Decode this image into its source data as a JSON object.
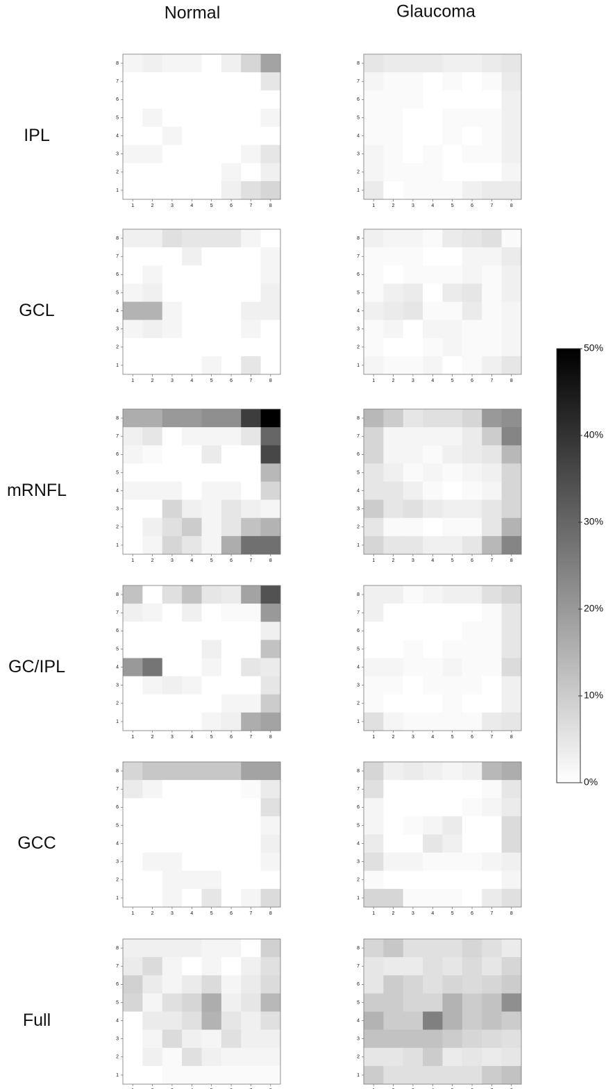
{
  "chart_data": {
    "type": "heatmap",
    "columns": [
      "Normal",
      "Glaucoma"
    ],
    "rows": [
      "IPL",
      "GCL",
      "mRNFL",
      "GC/IPL",
      "GCC",
      "Full"
    ],
    "x": [
      1,
      2,
      3,
      4,
      5,
      6,
      7,
      8
    ],
    "y": [
      8,
      7,
      6,
      5,
      4,
      3,
      2,
      1
    ],
    "colors": [
      "#ffffff",
      "#000000"
    ],
    "zlim": [
      0,
      50
    ],
    "zticks": [
      {
        "value": 0,
        "label": "0%"
      },
      {
        "value": 10,
        "label": "10%"
      },
      {
        "value": 20,
        "label": "20%"
      },
      {
        "value": 30,
        "label": "30%"
      },
      {
        "value": 40,
        "label": "40%"
      },
      {
        "value": 50,
        "label": "50%"
      }
    ],
    "panels": [
      [
        [
          [
            2,
            3,
            2,
            2,
            0,
            3,
            8,
            18
          ],
          [
            0,
            0,
            0,
            0,
            0,
            0,
            0,
            5
          ],
          [
            0,
            0,
            0,
            0,
            0,
            0,
            0,
            0
          ],
          [
            0,
            2,
            0,
            0,
            0,
            0,
            0,
            2
          ],
          [
            0,
            0,
            2,
            0,
            0,
            0,
            0,
            0
          ],
          [
            2,
            2,
            0,
            0,
            0,
            0,
            2,
            5
          ],
          [
            0,
            0,
            0,
            0,
            0,
            2,
            0,
            3
          ],
          [
            0,
            0,
            0,
            0,
            0,
            3,
            6,
            8
          ]
        ],
        [
          [
            5,
            4,
            4,
            4,
            3,
            3,
            4,
            5
          ],
          [
            2,
            1,
            1,
            0,
            1,
            0,
            1,
            4
          ],
          [
            1,
            1,
            1,
            0,
            0,
            0,
            0,
            3
          ],
          [
            1,
            1,
            0,
            0,
            1,
            1,
            1,
            3
          ],
          [
            1,
            1,
            0,
            0,
            1,
            0,
            1,
            3
          ],
          [
            2,
            1,
            0,
            1,
            0,
            1,
            1,
            3
          ],
          [
            2,
            1,
            1,
            1,
            0,
            0,
            0,
            2
          ],
          [
            4,
            0,
            1,
            1,
            1,
            3,
            4,
            4
          ]
        ]
      ],
      [
        [
          [
            3,
            3,
            6,
            5,
            5,
            5,
            2,
            0
          ],
          [
            0,
            0,
            0,
            3,
            0,
            0,
            0,
            2
          ],
          [
            0,
            2,
            0,
            0,
            0,
            0,
            0,
            2
          ],
          [
            2,
            3,
            0,
            0,
            0,
            0,
            0,
            3
          ],
          [
            15,
            15,
            2,
            0,
            0,
            0,
            3,
            3
          ],
          [
            2,
            3,
            2,
            0,
            0,
            0,
            2,
            0
          ],
          [
            0,
            0,
            0,
            0,
            0,
            0,
            0,
            0
          ],
          [
            0,
            0,
            0,
            0,
            2,
            0,
            5,
            0
          ]
        ],
        [
          [
            3,
            2,
            2,
            1,
            4,
            5,
            6,
            1
          ],
          [
            1,
            1,
            1,
            0,
            0,
            2,
            2,
            4
          ],
          [
            1,
            0,
            1,
            1,
            1,
            2,
            1,
            3
          ],
          [
            1,
            3,
            4,
            0,
            4,
            5,
            1,
            3
          ],
          [
            3,
            4,
            5,
            1,
            1,
            4,
            1,
            2
          ],
          [
            1,
            2,
            0,
            2,
            2,
            1,
            1,
            2
          ],
          [
            1,
            0,
            0,
            1,
            2,
            1,
            1,
            2
          ],
          [
            2,
            1,
            1,
            2,
            0,
            1,
            3,
            5
          ]
        ]
      ],
      [
        [
          [
            16,
            16,
            20,
            20,
            22,
            22,
            38,
            50
          ],
          [
            3,
            5,
            0,
            2,
            2,
            2,
            5,
            30
          ],
          [
            2,
            1,
            0,
            0,
            4,
            0,
            0,
            36
          ],
          [
            0,
            0,
            0,
            0,
            0,
            0,
            0,
            14
          ],
          [
            2,
            2,
            2,
            0,
            2,
            2,
            0,
            8
          ],
          [
            0,
            0,
            8,
            3,
            2,
            5,
            3,
            2
          ],
          [
            0,
            3,
            6,
            10,
            2,
            5,
            12,
            15
          ],
          [
            0,
            2,
            8,
            5,
            2,
            16,
            28,
            28
          ]
        ],
        [
          [
            14,
            10,
            5,
            6,
            6,
            8,
            20,
            22
          ],
          [
            8,
            2,
            2,
            2,
            2,
            4,
            10,
            24
          ],
          [
            8,
            2,
            2,
            1,
            3,
            4,
            5,
            14
          ],
          [
            5,
            3,
            1,
            2,
            1,
            2,
            3,
            8
          ],
          [
            5,
            5,
            3,
            1,
            0,
            1,
            2,
            8
          ],
          [
            10,
            5,
            6,
            4,
            3,
            3,
            5,
            8
          ],
          [
            5,
            1,
            1,
            0,
            1,
            1,
            5,
            15
          ],
          [
            8,
            5,
            5,
            3,
            3,
            5,
            14,
            24
          ]
        ]
      ],
      [
        [
          [
            12,
            0,
            6,
            12,
            5,
            4,
            18,
            34
          ],
          [
            3,
            2,
            0,
            3,
            0,
            1,
            1,
            20
          ],
          [
            0,
            0,
            0,
            0,
            0,
            0,
            0,
            3
          ],
          [
            0,
            0,
            0,
            0,
            3,
            0,
            0,
            12
          ],
          [
            20,
            27,
            0,
            0,
            2,
            0,
            5,
            4
          ],
          [
            0,
            2,
            3,
            2,
            0,
            0,
            0,
            5
          ],
          [
            0,
            0,
            0,
            0,
            0,
            2,
            2,
            10
          ],
          [
            0,
            0,
            0,
            0,
            2,
            3,
            16,
            18
          ]
        ],
        [
          [
            3,
            3,
            1,
            2,
            3,
            3,
            6,
            8
          ],
          [
            3,
            0,
            0,
            0,
            0,
            0,
            1,
            5
          ],
          [
            0,
            0,
            0,
            0,
            0,
            1,
            1,
            5
          ],
          [
            0,
            0,
            1,
            0,
            1,
            1,
            1,
            5
          ],
          [
            2,
            2,
            1,
            1,
            2,
            1,
            1,
            7
          ],
          [
            1,
            1,
            0,
            1,
            1,
            1,
            0,
            3
          ],
          [
            1,
            0,
            0,
            0,
            1,
            0,
            0,
            3
          ],
          [
            6,
            2,
            1,
            1,
            1,
            1,
            4,
            5
          ]
        ]
      ],
      [
        [
          [
            8,
            11,
            11,
            11,
            11,
            11,
            18,
            18
          ],
          [
            4,
            2,
            0,
            0,
            0,
            0,
            1,
            4
          ],
          [
            0,
            0,
            0,
            0,
            0,
            0,
            0,
            6
          ],
          [
            0,
            0,
            0,
            0,
            0,
            0,
            0,
            2
          ],
          [
            0,
            0,
            0,
            0,
            0,
            0,
            0,
            3
          ],
          [
            0,
            2,
            2,
            0,
            0,
            0,
            0,
            2
          ],
          [
            0,
            0,
            2,
            2,
            2,
            0,
            0,
            0
          ],
          [
            0,
            0,
            2,
            0,
            5,
            0,
            2,
            7
          ]
        ],
        [
          [
            8,
            3,
            4,
            3,
            2,
            3,
            14,
            16
          ],
          [
            6,
            0,
            0,
            0,
            0,
            0,
            1,
            5
          ],
          [
            2,
            0,
            0,
            0,
            0,
            1,
            2,
            4
          ],
          [
            2,
            0,
            1,
            2,
            4,
            0,
            0,
            7
          ],
          [
            4,
            0,
            0,
            5,
            3,
            0,
            0,
            7
          ],
          [
            6,
            2,
            2,
            1,
            1,
            1,
            2,
            3
          ],
          [
            1,
            0,
            0,
            0,
            0,
            0,
            0,
            2
          ],
          [
            8,
            8,
            1,
            1,
            1,
            0,
            4,
            6
          ]
        ]
      ],
      [
        [
          [
            3,
            3,
            3,
            3,
            2,
            2,
            0,
            9
          ],
          [
            4,
            7,
            2,
            0,
            2,
            0,
            3,
            6
          ],
          [
            9,
            4,
            2,
            4,
            7,
            2,
            4,
            7
          ],
          [
            8,
            2,
            6,
            8,
            16,
            3,
            5,
            14
          ],
          [
            0,
            4,
            4,
            6,
            15,
            5,
            3,
            6
          ],
          [
            0,
            2,
            7,
            3,
            2,
            6,
            3,
            3
          ],
          [
            0,
            3,
            1,
            6,
            3,
            2,
            2,
            2
          ],
          [
            0,
            0,
            1,
            1,
            1,
            1,
            1,
            1
          ]
        ],
        [
          [
            8,
            11,
            6,
            6,
            6,
            8,
            6,
            4
          ],
          [
            5,
            4,
            4,
            6,
            5,
            7,
            5,
            8
          ],
          [
            5,
            10,
            8,
            6,
            8,
            7,
            8,
            10
          ],
          [
            10,
            10,
            8,
            8,
            15,
            10,
            12,
            22
          ],
          [
            15,
            10,
            10,
            25,
            15,
            10,
            12,
            10
          ],
          [
            12,
            12,
            12,
            12,
            10,
            8,
            7,
            6
          ],
          [
            5,
            5,
            6,
            10,
            4,
            5,
            4,
            5
          ],
          [
            10,
            6,
            6,
            6,
            6,
            6,
            10,
            12
          ]
        ]
      ]
    ]
  }
}
